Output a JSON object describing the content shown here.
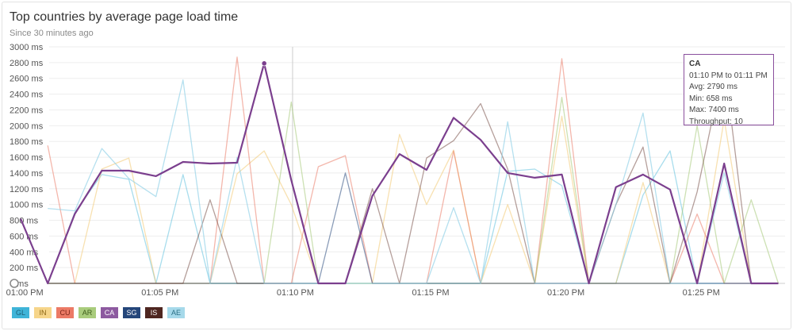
{
  "header": {
    "title": "Top countries by average page load time",
    "subtitle": "Since 30 minutes ago"
  },
  "tooltip": {
    "title": "CA",
    "range": "01:10 PM to 01:11 PM",
    "avg": "Avg: 2790 ms",
    "min": "Min: 658 ms",
    "max": "Max: 7400 ms",
    "throughput": "Throughput: 10"
  },
  "colors": {
    "grid": "#eeeeee",
    "axis": "#cccccc",
    "hover_line": "#cccccc"
  },
  "chart_data": {
    "type": "line",
    "title": "Top countries by average page load time",
    "subtitle": "Since 30 minutes ago",
    "xlabel": "",
    "ylabel": "",
    "ylim": [
      0,
      3000
    ],
    "y_ticks": [
      0,
      200,
      400,
      600,
      800,
      1000,
      1200,
      1400,
      1600,
      1800,
      2000,
      2200,
      2400,
      2600,
      2800,
      3000
    ],
    "y_tick_labels": [
      "0 ms",
      "200 ms",
      "400 ms",
      "600 ms",
      "800 ms",
      "1000 ms",
      "1200 ms",
      "1400 ms",
      "1600 ms",
      "1800 ms",
      "2000 ms",
      "2200 ms",
      "2400 ms",
      "2600 ms",
      "2800 ms",
      "3000 ms"
    ],
    "x_ticks": [
      -0.35,
      4.65,
      9.65,
      14.65,
      19.65,
      24.65
    ],
    "x_tick_labels": [
      "01:00 PM",
      "01:05 PM",
      "01:10 PM",
      "01:15 PM",
      "01:20 PM",
      "01:25 PM"
    ],
    "x_range": [
      -0.97,
      27.75
    ],
    "grid": true,
    "legend_position": "bottom-left",
    "hover_x": 9.55,
    "x": [
      -0.5,
      0.5,
      1.5,
      2.5,
      3.5,
      4.5,
      5.5,
      6.5,
      7.5,
      8.5,
      9.5,
      10.5,
      11.5,
      12.5,
      13.5,
      14.5,
      15.5,
      16.5,
      17.5,
      18.5,
      19.5,
      20.5,
      21.5,
      22.5,
      23.5,
      24.5,
      25.5,
      26.5,
      27.5
    ],
    "series": [
      {
        "name": "GL",
        "color": "#3fb4d8",
        "opacity": 0.45,
        "width": 1.3,
        "values": [
          null,
          0,
          900,
          1380,
          1320,
          0,
          1380,
          0,
          0,
          0,
          0,
          0,
          0,
          0,
          0,
          0,
          0,
          0,
          1420,
          1450,
          1240,
          0,
          0,
          1120,
          1680,
          0,
          0,
          0,
          0
        ]
      },
      {
        "name": "IN",
        "color": "#f2c463",
        "opacity": 0.5,
        "width": 1.3,
        "values": [
          null,
          0,
          0,
          1450,
          1590,
          0,
          0,
          0,
          1390,
          1680,
          1000,
          0,
          0,
          0,
          1890,
          1000,
          1690,
          0,
          1000,
          0,
          2120,
          0,
          0,
          1280,
          0,
          0,
          2080,
          0,
          0
        ]
      },
      {
        "name": "CU",
        "color": "#ea6f5a",
        "opacity": 0.5,
        "width": 1.3,
        "values": [
          null,
          1750,
          0,
          0,
          0,
          0,
          0,
          0,
          2870,
          0,
          0,
          1480,
          1620,
          0,
          0,
          0,
          1680,
          0,
          0,
          0,
          2850,
          0,
          0,
          0,
          0,
          880,
          0,
          0,
          0
        ]
      },
      {
        "name": "AR",
        "color": "#9cc36a",
        "opacity": 0.5,
        "width": 1.3,
        "values": [
          null,
          0,
          0,
          0,
          0,
          0,
          0,
          0,
          0,
          0,
          2300,
          0,
          0,
          0,
          0,
          0,
          0,
          0,
          0,
          0,
          2360,
          0,
          0,
          0,
          0,
          2000,
          0,
          1060,
          0
        ]
      },
      {
        "name": "CA",
        "color": "#7b3f8e",
        "opacity": 1,
        "width": 2.2,
        "values": [
          820,
          0,
          880,
          1430,
          1430,
          1360,
          1540,
          1520,
          1530,
          2790,
          1310,
          0,
          0,
          1110,
          1640,
          1440,
          2100,
          1820,
          1400,
          1340,
          1380,
          0,
          1220,
          1380,
          1190,
          0,
          1520,
          0,
          0
        ]
      },
      {
        "name": "SG",
        "color": "#2a4a7e",
        "opacity": 0.55,
        "width": 1.3,
        "values": [
          null,
          0,
          0,
          0,
          0,
          0,
          0,
          0,
          0,
          0,
          0,
          0,
          1400,
          0,
          0,
          0,
          0,
          0,
          0,
          0,
          0,
          0,
          0,
          0,
          0,
          0,
          0,
          0,
          0
        ]
      },
      {
        "name": "IS",
        "color": "#5a2a22",
        "opacity": 0.45,
        "width": 1.3,
        "values": [
          null,
          0,
          0,
          0,
          0,
          0,
          0,
          1060,
          0,
          0,
          0,
          0,
          0,
          1200,
          0,
          1590,
          1810,
          2280,
          1450,
          0,
          0,
          0,
          1000,
          1730,
          0,
          1160,
          2800,
          0,
          0
        ]
      },
      {
        "name": "AE",
        "color": "#8ed0e6",
        "opacity": 0.65,
        "width": 1.3,
        "values": [
          null,
          950,
          920,
          1710,
          1330,
          1100,
          2580,
          0,
          1600,
          0,
          0,
          0,
          0,
          0,
          0,
          0,
          960,
          0,
          2050,
          0,
          0,
          0,
          1000,
          2160,
          0,
          0,
          1400,
          0,
          0
        ]
      }
    ]
  },
  "legend": [
    {
      "label": "GL",
      "bg": "#3fb4d8",
      "fg": "#1d5f75"
    },
    {
      "label": "IN",
      "bg": "#f6d58a",
      "fg": "#8a6514"
    },
    {
      "label": "CU",
      "bg": "#ec7a66",
      "fg": "#7a2416"
    },
    {
      "label": "AR",
      "bg": "#a9cc7c",
      "fg": "#3d5d1a"
    },
    {
      "label": "CA",
      "bg": "#8d5aa0",
      "fg": "#ffffff"
    },
    {
      "label": "SG",
      "bg": "#25467a",
      "fg": "#ffffff"
    },
    {
      "label": "IS",
      "bg": "#4e2620",
      "fg": "#ffffff"
    },
    {
      "label": "AE",
      "bg": "#a6d9ea",
      "fg": "#2b6f85"
    }
  ]
}
